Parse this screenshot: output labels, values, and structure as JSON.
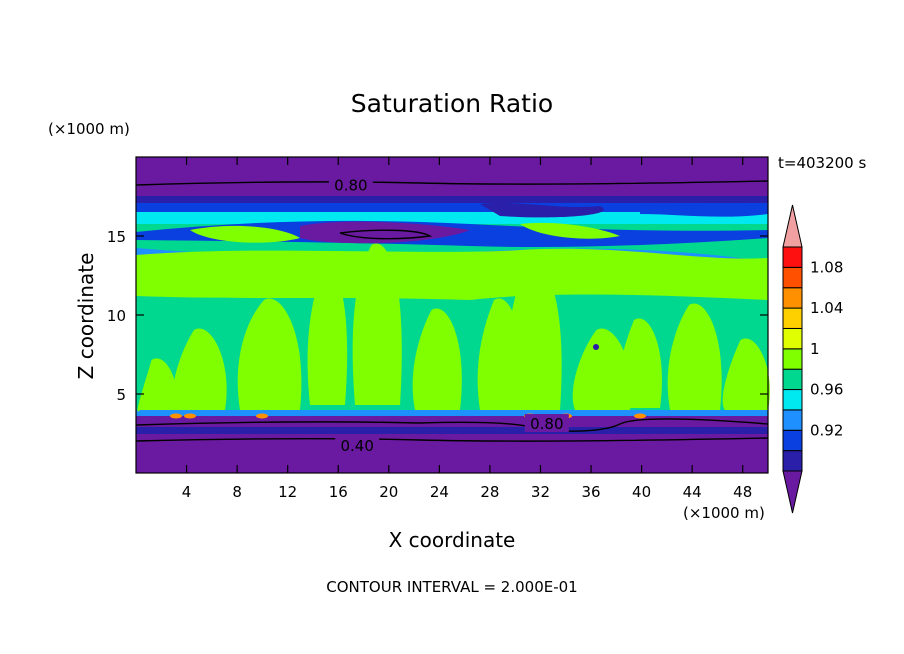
{
  "chart_data": {
    "type": "heatmap",
    "title": "Saturation Ratio",
    "xlabel": "X coordinate",
    "ylabel": "Z coordinate",
    "x_unit": "(×1000 m)",
    "y_unit": "(×1000 m)",
    "xlim": [
      0,
      50
    ],
    "ylim": [
      0,
      20
    ],
    "x_ticks": [
      4,
      8,
      12,
      16,
      20,
      24,
      28,
      32,
      36,
      40,
      44,
      48
    ],
    "y_ticks": [
      5,
      10,
      15
    ],
    "time_label": "t=403200 s",
    "footer": "CONTOUR INTERVAL = 2.000E-01",
    "contour_labels": [
      {
        "text": "0.80",
        "x": 17,
        "z": 18.2
      },
      {
        "text": "0.80",
        "x": 32.5,
        "z": 3.1
      },
      {
        "text": "0.40",
        "x": 17.5,
        "z": 1.7
      }
    ],
    "colorbar": {
      "tick_labels": [
        "0.92",
        "0.96",
        "1",
        "1.04",
        "1.08"
      ],
      "levels": [
        {
          "color": "#6a1aa0"
        },
        {
          "color": "#2a1fa8"
        },
        {
          "color": "#0a3fe0"
        },
        {
          "color": "#1e90ff"
        },
        {
          "color": "#00e8f0"
        },
        {
          "color": "#00d890"
        },
        {
          "color": "#80ff00"
        },
        {
          "color": "#e0ff00"
        },
        {
          "color": "#ffd000"
        },
        {
          "color": "#ff9000"
        },
        {
          "color": "#ff5000"
        },
        {
          "color": "#ff1010"
        },
        {
          "color": "#f0a0a0"
        }
      ]
    }
  }
}
